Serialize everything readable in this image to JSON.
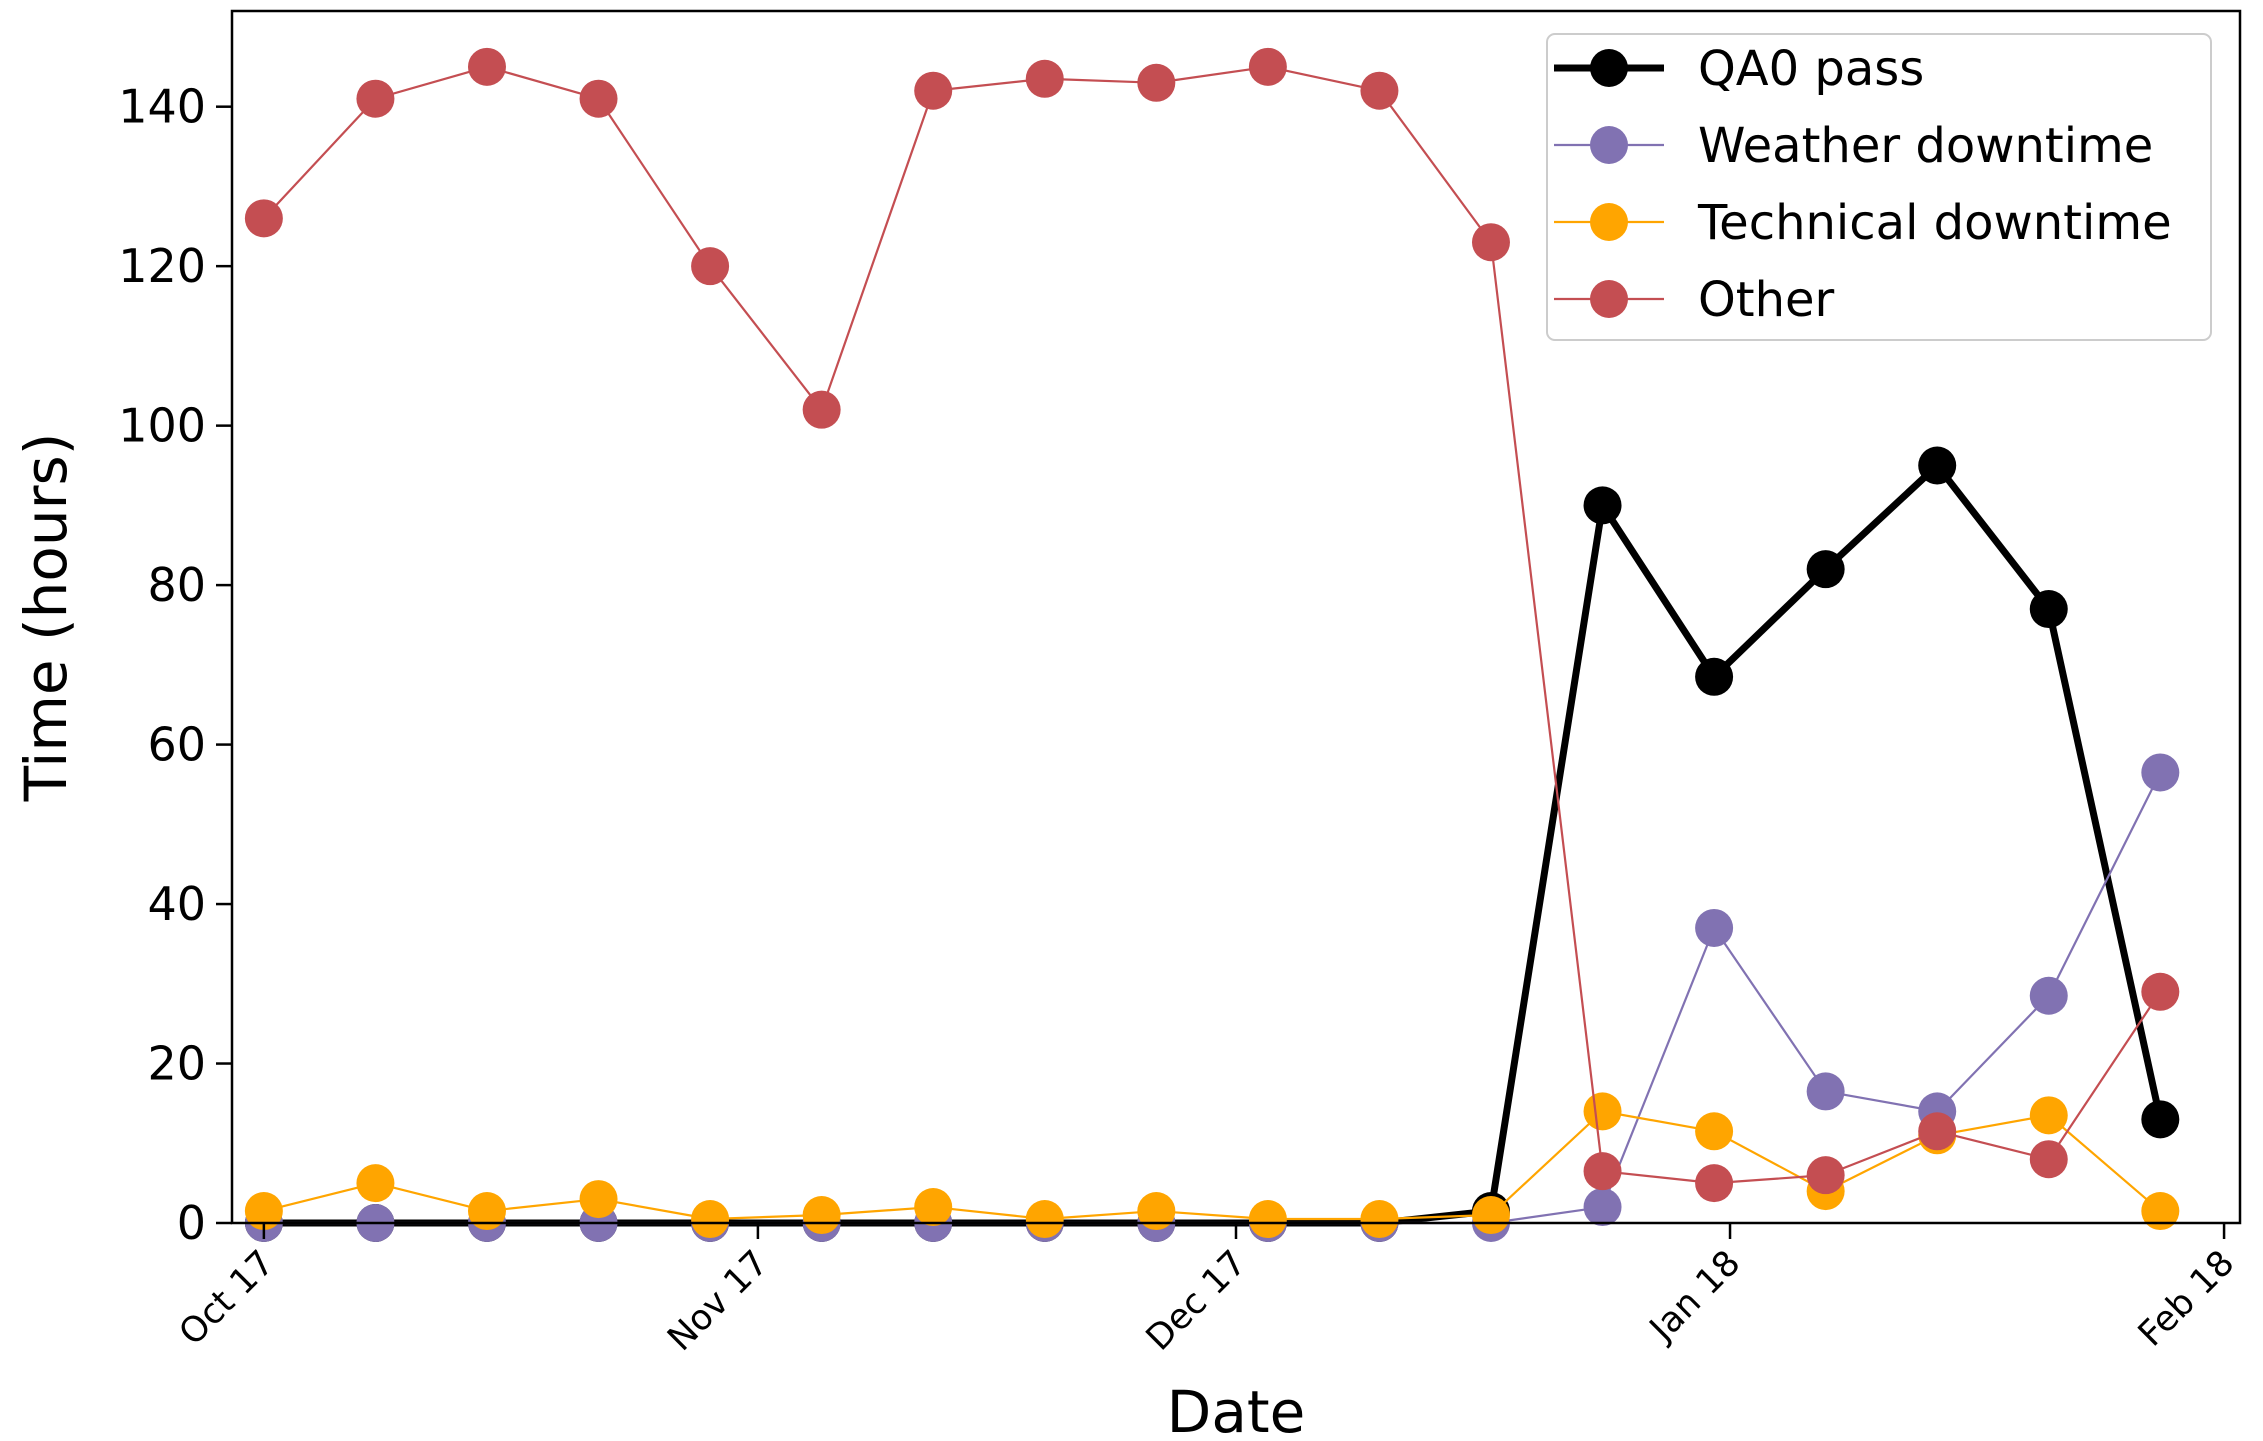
{
  "chart_data": {
    "type": "line",
    "xlabel": "Date",
    "ylabel": "Time (hours)",
    "ylim": [
      0,
      152
    ],
    "yticks": [
      0,
      20,
      40,
      60,
      80,
      100,
      120,
      140
    ],
    "xlim": [
      "2017-10-15",
      "2018-02-18"
    ],
    "xticks": [
      {
        "date": "2017-10-17",
        "label": "Oct 17"
      },
      {
        "date": "2017-11-17",
        "label": "Nov 17"
      },
      {
        "date": "2017-12-17",
        "label": "Dec 17"
      },
      {
        "date": "2018-01-17",
        "label": "Jan 18"
      },
      {
        "date": "2018-02-17",
        "label": "Feb 18"
      }
    ],
    "grid": false,
    "legend_position": "top-right",
    "x": [
      "2017-10-17",
      "2017-10-24",
      "2017-10-31",
      "2017-11-07",
      "2017-11-14",
      "2017-11-21",
      "2017-11-28",
      "2017-12-05",
      "2017-12-12",
      "2017-12-19",
      "2017-12-26",
      "2018-01-02",
      "2018-01-09",
      "2018-01-16",
      "2018-01-23",
      "2018-01-30",
      "2018-02-06",
      "2018-02-13"
    ],
    "series": [
      {
        "name": "QA0 pass",
        "color": "#000000",
        "style": "thick",
        "values": [
          0,
          0,
          0,
          0,
          0,
          0,
          0,
          0,
          0,
          0,
          0,
          1.5,
          90,
          68.5,
          82,
          95,
          77,
          13
        ]
      },
      {
        "name": "Weather downtime",
        "color": "#8172b2",
        "style": "thin",
        "values": [
          0,
          0,
          0,
          0,
          0,
          0,
          0,
          0,
          0,
          0,
          0,
          0,
          2,
          37,
          16.5,
          14,
          28.5,
          56.5
        ]
      },
      {
        "name": "Technical downtime",
        "color": "#ffa500",
        "style": "thin",
        "values": [
          1.5,
          5,
          1.5,
          3,
          0.5,
          1,
          2,
          0.5,
          1.5,
          0.5,
          0.5,
          1,
          14,
          11.5,
          4,
          11,
          13.5,
          1.5
        ]
      },
      {
        "name": "Other",
        "color": "#c44e52",
        "style": "thin",
        "values": [
          126,
          141,
          145,
          141,
          120,
          102,
          142,
          143.5,
          143,
          145,
          142,
          123,
          6.5,
          5,
          6,
          11.5,
          8,
          29
        ]
      }
    ]
  }
}
